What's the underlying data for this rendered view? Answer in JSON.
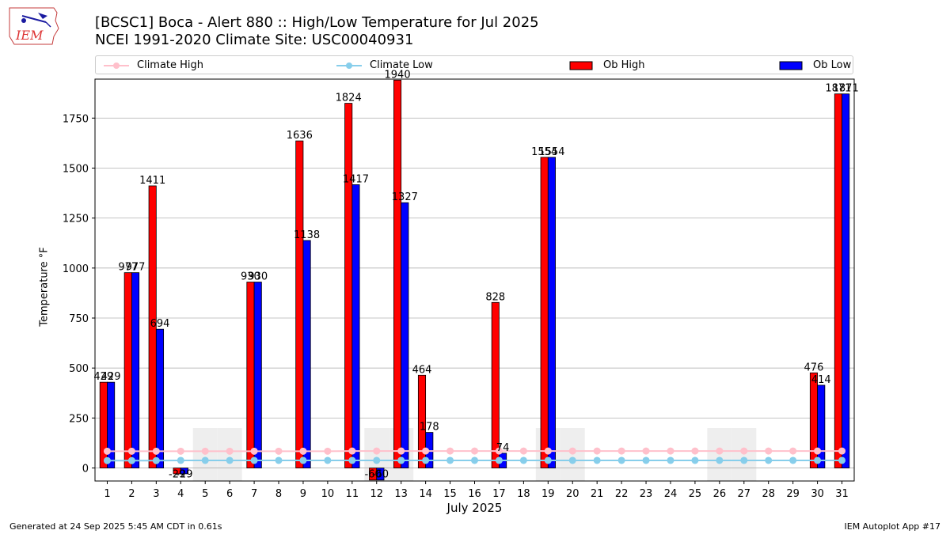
{
  "header": {
    "title_line1": "[BCSC1] Boca - Alert 880 :: High/Low Temperature for Jul 2025",
    "title_line2": "NCEI 1991-2020 Climate Site: USC00040931"
  },
  "logo": {
    "text": "IEM"
  },
  "footer": {
    "generated": "Generated at 24 Sep 2025 5:45 AM CDT in 0.61s",
    "app": "IEM Autoplot App #17"
  },
  "colors": {
    "ob_high": "#ff0000",
    "ob_low": "#0000ff",
    "climate_high": "#ffc0cb",
    "climate_low": "#87ceeb",
    "shade": "#eeeeee",
    "grid": "#b0b0b0"
  },
  "chart_data": {
    "type": "bar",
    "xlabel": "July 2025",
    "ylabel": "Temperature °F",
    "ylim": [
      -65,
      1945
    ],
    "yticks": [
      0,
      250,
      500,
      750,
      1000,
      1250,
      1500,
      1750
    ],
    "grid": "horizontal",
    "legend_placement": "top",
    "categories": [
      "1",
      "2",
      "3",
      "4",
      "5",
      "6",
      "7",
      "8",
      "9",
      "10",
      "11",
      "12",
      "13",
      "14",
      "15",
      "16",
      "17",
      "18",
      "19",
      "20",
      "21",
      "22",
      "23",
      "24",
      "25",
      "26",
      "27",
      "28",
      "29",
      "30",
      "31"
    ],
    "series": [
      {
        "name": "Climate High",
        "kind": "line",
        "values": [
          84,
          84,
          84,
          84,
          84,
          84,
          84,
          84,
          84,
          84,
          85,
          85,
          85,
          85,
          85,
          85,
          85,
          85,
          85,
          85,
          85,
          85,
          85,
          85,
          85,
          85,
          85,
          85,
          85,
          85,
          85
        ]
      },
      {
        "name": "Climate Low",
        "kind": "line",
        "values": [
          37,
          37,
          37,
          38,
          38,
          38,
          38,
          38,
          38,
          38,
          38,
          38,
          38,
          38,
          38,
          38,
          38,
          38,
          38,
          38,
          38,
          38,
          38,
          38,
          38,
          38,
          38,
          38,
          38,
          38,
          38
        ]
      },
      {
        "name": "Ob High",
        "kind": "bar",
        "values": [
          429,
          977,
          1411,
          -29,
          null,
          null,
          930,
          null,
          1636,
          null,
          1824,
          -60,
          1940,
          464,
          null,
          null,
          828,
          null,
          1554,
          null,
          null,
          null,
          null,
          null,
          null,
          null,
          null,
          null,
          null,
          476,
          1871
        ]
      },
      {
        "name": "Ob Low",
        "kind": "bar",
        "values": [
          429,
          977,
          694,
          -29,
          null,
          null,
          930,
          null,
          1138,
          null,
          1417,
          -60,
          1327,
          178,
          null,
          null,
          74,
          null,
          1554,
          null,
          null,
          null,
          null,
          null,
          null,
          null,
          null,
          null,
          null,
          414,
          1871
        ]
      }
    ],
    "bar_labels_high": [
      "429",
      "977",
      "1411",
      "-29",
      "",
      "",
      "930",
      "",
      "1636",
      "",
      "1824",
      "-60",
      "1940",
      "464",
      "",
      "",
      "828",
      "",
      "1554",
      "",
      "",
      "",
      "",
      "",
      "",
      "",
      "",
      "",
      "",
      "476",
      "1871"
    ],
    "bar_labels_low": [
      "429",
      "977",
      "694",
      "-29",
      "",
      "",
      "930",
      "",
      "1138",
      "",
      "1417",
      "-60",
      "1327",
      "178",
      "",
      "",
      "74",
      "",
      "1554",
      "",
      "",
      "",
      "",
      "",
      "",
      "",
      "",
      "",
      "",
      "414",
      "1871"
    ],
    "missing_days_shaded": [
      5,
      6,
      12,
      13,
      19,
      20,
      26,
      27
    ]
  }
}
